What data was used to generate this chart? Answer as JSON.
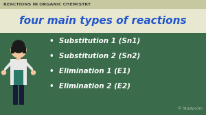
{
  "header_text": "REACTIONS IN ORGANIC CHEMISTRY",
  "title_text": "four main types of reactions",
  "bullet_items": [
    "Substitution 1 (Sn1)",
    "Substitution 2 (Sn2)",
    "Elimination 1 (E1)",
    "Elimination 2 (E2)"
  ],
  "header_bg": "#c8c8a0",
  "header_text_color": "#3a3a3a",
  "title_bg": "#e8e8d0",
  "title_text_color": "#2255cc",
  "board_bg": "#3a6b4a",
  "bullet_text_color": "#ffffff",
  "watermark": "© Study.com",
  "watermark_color": "#cccccc",
  "skin_color": "#f5c5a0",
  "hair_color": "#1a1a1a",
  "coat_color": "#e8e8e8",
  "shirt_color": "#2a7a6a",
  "pants_color": "#1a1a3a",
  "fig_width": 3.0,
  "fig_height": 1.68,
  "dpi": 100
}
